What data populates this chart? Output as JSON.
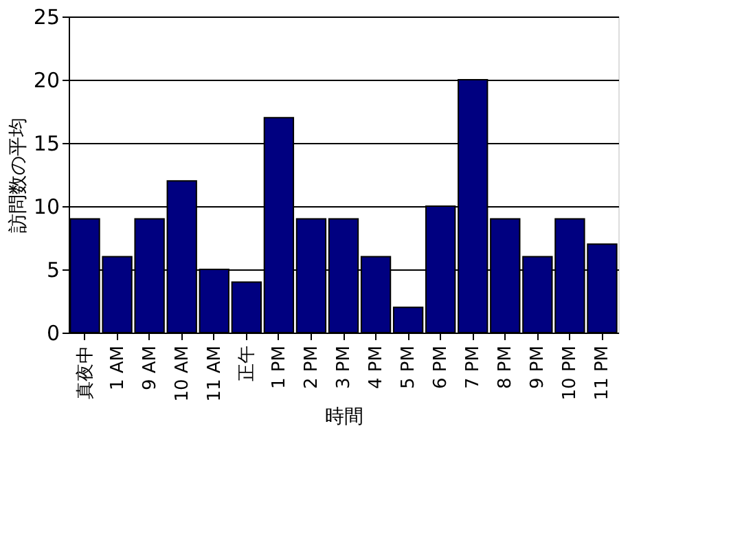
{
  "chart_data": {
    "type": "bar",
    "xlabel": "時間",
    "ylabel": "訪問数の平均",
    "categories": [
      "真夜中",
      "1 AM",
      "9 AM",
      "10 AM",
      "11 AM",
      "正午",
      "1 PM",
      "2 PM",
      "3 PM",
      "4 PM",
      "5 PM",
      "6 PM",
      "7 PM",
      "8 PM",
      "9 PM",
      "10 PM",
      "11 PM"
    ],
    "values": [
      9,
      6,
      9,
      12,
      5,
      4,
      17,
      9,
      9,
      6,
      2,
      10,
      20,
      9,
      6,
      9,
      7
    ],
    "color": "#000080",
    "ylim": [
      0,
      25
    ],
    "yticks": [
      0,
      5,
      10,
      15,
      20,
      25
    ],
    "grid": "y"
  }
}
